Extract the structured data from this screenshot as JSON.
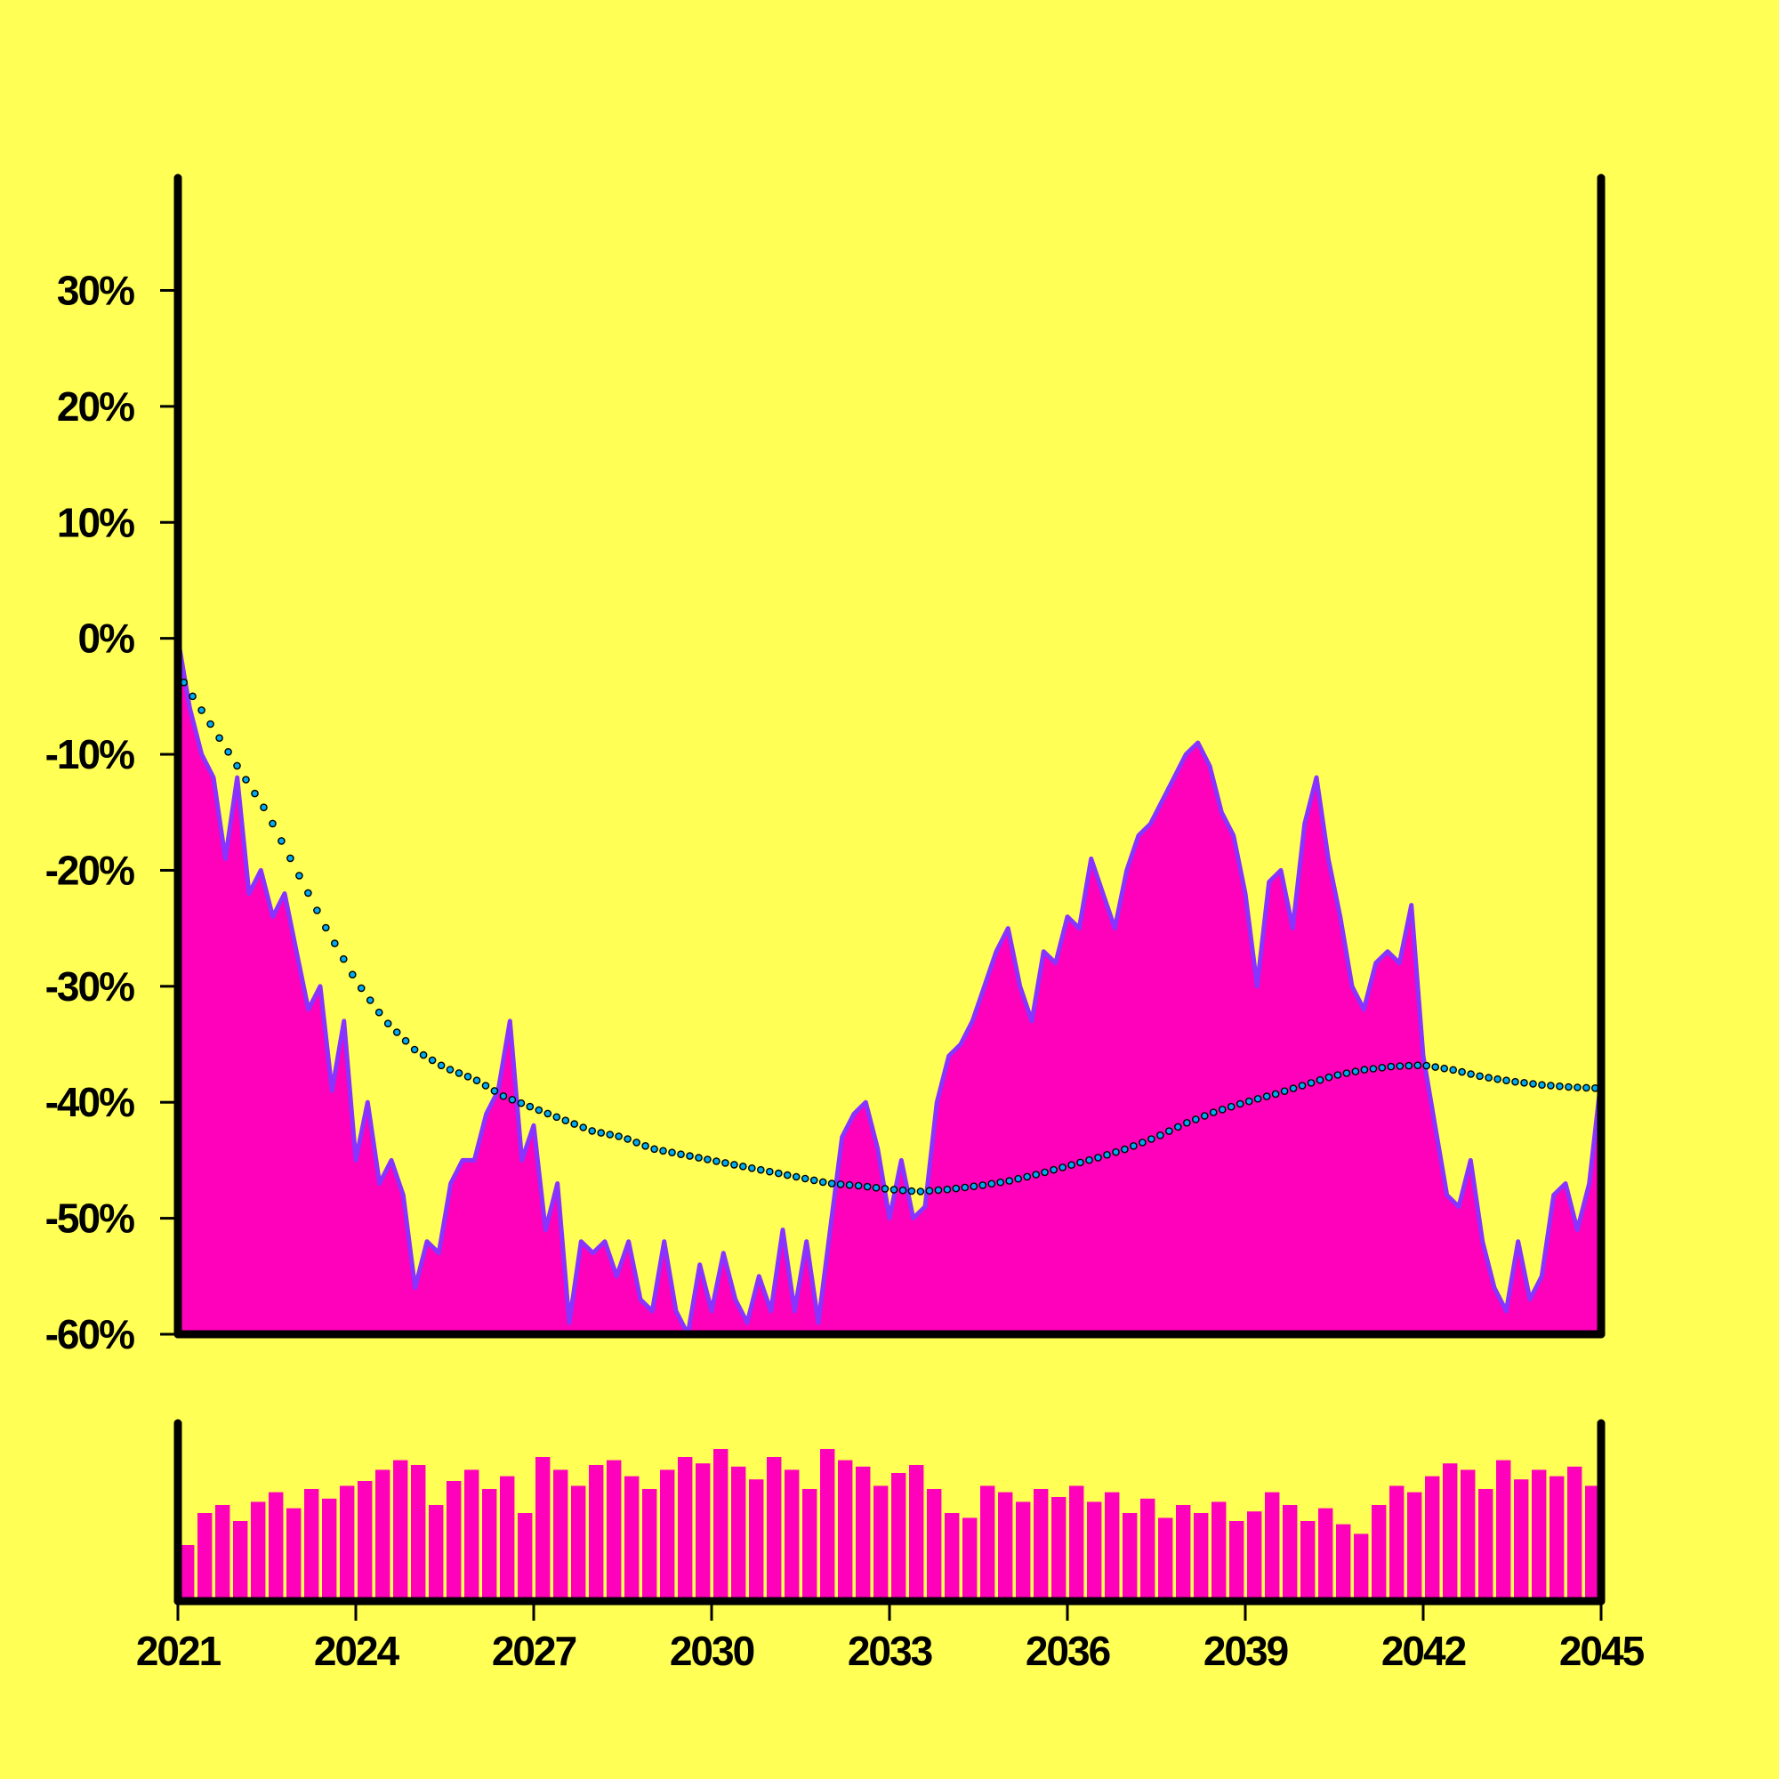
{
  "chart_data": {
    "type": "area",
    "title": "",
    "xlabel": "",
    "ylabel": "",
    "xlim": [
      2021,
      2045
    ],
    "ylim": [
      -60,
      40
    ],
    "x_ticks": [
      2021,
      2024,
      2027,
      2030,
      2033,
      2036,
      2039,
      2042,
      2045
    ],
    "x_tick_labels": [
      "2021",
      "2024",
      "2027",
      "2030",
      "2033",
      "2036",
      "2039",
      "2042",
      "2045"
    ],
    "y_ticks": [
      30,
      20,
      10,
      0,
      -10,
      -20,
      -30,
      -40,
      -50,
      -60
    ],
    "y_tick_labels": [
      "30%",
      "20%",
      "10%",
      "0%",
      "-10%",
      "-20%",
      "-30%",
      "-40%",
      "-50%",
      "-60%"
    ],
    "grid": false,
    "legend": "none",
    "series": [
      {
        "role": "drawdown",
        "style": "filled area",
        "x": [
          2021.0,
          2021.2,
          2021.4,
          2021.6,
          2021.8,
          2022.0,
          2022.2,
          2022.4,
          2022.6,
          2022.8,
          2023.0,
          2023.2,
          2023.4,
          2023.6,
          2023.8,
          2024.0,
          2024.2,
          2024.4,
          2024.6,
          2024.8,
          2025.0,
          2025.2,
          2025.4,
          2025.6,
          2025.8,
          2026.0,
          2026.2,
          2026.4,
          2026.6,
          2026.8,
          2027.0,
          2027.2,
          2027.4,
          2027.6,
          2027.8,
          2028.0,
          2028.2,
          2028.4,
          2028.6,
          2028.8,
          2029.0,
          2029.2,
          2029.4,
          2029.6,
          2029.8,
          2030.0,
          2030.2,
          2030.4,
          2030.6,
          2030.8,
          2031.0,
          2031.2,
          2031.4,
          2031.6,
          2031.8,
          2032.0,
          2032.2,
          2032.4,
          2032.6,
          2032.8,
          2033.0,
          2033.2,
          2033.4,
          2033.6,
          2033.8,
          2034.0,
          2034.2,
          2034.4,
          2034.6,
          2034.8,
          2035.0,
          2035.2,
          2035.4,
          2035.6,
          2035.8,
          2036.0,
          2036.2,
          2036.4,
          2036.6,
          2036.8,
          2037.0,
          2037.2,
          2037.4,
          2037.6,
          2037.8,
          2038.0,
          2038.2,
          2038.4,
          2038.6,
          2038.8,
          2039.0,
          2039.2,
          2039.4,
          2039.6,
          2039.8,
          2040.0,
          2040.2,
          2040.4,
          2040.6,
          2040.8,
          2041.0,
          2041.2,
          2041.4,
          2041.6,
          2041.8,
          2042.0,
          2042.2,
          2042.4,
          2042.6,
          2042.8,
          2043.0,
          2043.2,
          2043.4,
          2043.6,
          2043.8,
          2044.0,
          2044.2,
          2044.4,
          2044.6,
          2044.8,
          2045.0
        ],
        "values": [
          0,
          -6,
          -10,
          -12,
          -19,
          -12,
          -22,
          -20,
          -24,
          -22,
          -27,
          -32,
          -30,
          -39,
          -33,
          -45,
          -40,
          -47,
          -45,
          -48,
          -56,
          -52,
          -53,
          -47,
          -45,
          -45,
          -41,
          -39,
          -33,
          -45,
          -42,
          -51,
          -47,
          -59,
          -52,
          -53,
          -52,
          -55,
          -52,
          -57,
          -58,
          -52,
          -58,
          -60,
          -54,
          -58,
          -53,
          -57,
          -59,
          -55,
          -58,
          -51,
          -58,
          -52,
          -59,
          -51,
          -43,
          -41,
          -40,
          -44,
          -50,
          -45,
          -50,
          -49,
          -40,
          -36,
          -35,
          -33,
          -30,
          -27,
          -25,
          -30,
          -33,
          -27,
          -28,
          -24,
          -25,
          -19,
          -22,
          -25,
          -20,
          -17,
          -16,
          -14,
          -12,
          -10,
          -9,
          -11,
          -15,
          -17,
          -22,
          -30,
          -21,
          -20,
          -25,
          -16,
          -12,
          -19,
          -24,
          -30,
          -32,
          -28,
          -27,
          -28,
          -23,
          -36,
          -42,
          -48,
          -49,
          -45,
          -52,
          -56,
          -58,
          -52,
          -57,
          -55,
          -48,
          -47,
          -51,
          -47,
          -38
        ]
      },
      {
        "role": "trend",
        "style": "dotted line",
        "x": [
          2021.0,
          2021.5,
          2022.0,
          2022.5,
          2023.0,
          2023.5,
          2024.0,
          2024.5,
          2025.0,
          2025.5,
          2026.0,
          2026.5,
          2027.0,
          2027.5,
          2028.0,
          2028.5,
          2029.0,
          2029.5,
          2030.0,
          2030.5,
          2031.0,
          2031.5,
          2032.0,
          2032.5,
          2033.0,
          2033.5,
          2034.0,
          2034.5,
          2035.0,
          2035.5,
          2036.0,
          2036.5,
          2037.0,
          2037.5,
          2038.0,
          2038.5,
          2039.0,
          2039.5,
          2040.0,
          2040.5,
          2041.0,
          2041.5,
          2042.0,
          2042.5,
          2043.0,
          2043.5,
          2044.0,
          2044.5,
          2045.0
        ],
        "values": [
          -3,
          -7,
          -11,
          -15,
          -20,
          -25,
          -29.5,
          -33,
          -35.5,
          -37,
          -38,
          -39.5,
          -40.5,
          -41.5,
          -42.5,
          -43,
          -44,
          -44.5,
          -45,
          -45.5,
          -46,
          -46.5,
          -47,
          -47.2,
          -47.5,
          -47.7,
          -47.5,
          -47.2,
          -46.8,
          -46.2,
          -45.5,
          -44.8,
          -44,
          -43,
          -41.8,
          -40.8,
          -40,
          -39.3,
          -38.5,
          -37.7,
          -37.2,
          -36.9,
          -36.8,
          -37.2,
          -37.8,
          -38.2,
          -38.5,
          -38.7,
          -38.8
        ]
      },
      {
        "role": "bars",
        "style": "bar panel",
        "x": [
          2021.0,
          2021.3,
          2021.6,
          2021.9,
          2022.2,
          2022.5,
          2022.8,
          2023.1,
          2023.4,
          2023.7,
          2024.0,
          2024.3,
          2024.6,
          2024.9,
          2025.2,
          2025.5,
          2025.8,
          2026.1,
          2026.4,
          2026.7,
          2027.0,
          2027.3,
          2027.6,
          2027.9,
          2028.2,
          2028.5,
          2028.8,
          2029.1,
          2029.4,
          2029.7,
          2030.0,
          2030.3,
          2030.6,
          2030.9,
          2031.2,
          2031.5,
          2031.8,
          2032.1,
          2032.4,
          2032.7,
          2033.0,
          2033.3,
          2033.6,
          2033.9,
          2034.2,
          2034.5,
          2034.8,
          2035.1,
          2035.4,
          2035.7,
          2036.0,
          2036.3,
          2036.6,
          2036.9,
          2037.2,
          2037.5,
          2037.8,
          2038.1,
          2038.4,
          2038.7,
          2039.0,
          2039.3,
          2039.6,
          2039.9,
          2040.2,
          2040.5,
          2040.8,
          2041.1,
          2041.4,
          2041.7,
          2042.0,
          2042.3,
          2042.6,
          2042.9,
          2043.2,
          2043.5,
          2043.8,
          2044.1,
          2044.4,
          2044.7
        ],
        "values": [
          0.35,
          0.55,
          0.6,
          0.5,
          0.62,
          0.68,
          0.58,
          0.7,
          0.64,
          0.72,
          0.75,
          0.82,
          0.88,
          0.85,
          0.6,
          0.75,
          0.82,
          0.7,
          0.78,
          0.55,
          0.9,
          0.82,
          0.72,
          0.85,
          0.88,
          0.78,
          0.7,
          0.82,
          0.9,
          0.86,
          0.95,
          0.84,
          0.76,
          0.9,
          0.82,
          0.7,
          0.95,
          0.88,
          0.84,
          0.72,
          0.8,
          0.85,
          0.7,
          0.55,
          0.52,
          0.72,
          0.68,
          0.62,
          0.7,
          0.65,
          0.72,
          0.62,
          0.68,
          0.55,
          0.64,
          0.52,
          0.6,
          0.55,
          0.62,
          0.5,
          0.56,
          0.68,
          0.6,
          0.5,
          0.58,
          0.48,
          0.42,
          0.6,
          0.72,
          0.68,
          0.78,
          0.86,
          0.82,
          0.7,
          0.88,
          0.76,
          0.82,
          0.78,
          0.84,
          0.72
        ]
      }
    ],
    "colors": {
      "background": "#ffff55",
      "area_fill": "#ff00bb",
      "area_line": "#8833ff",
      "trend_dot_fill": "#00aaee",
      "trend_dot_stroke": "#000000",
      "bar_fill": "#ff00bb",
      "axis": "#000000"
    }
  }
}
